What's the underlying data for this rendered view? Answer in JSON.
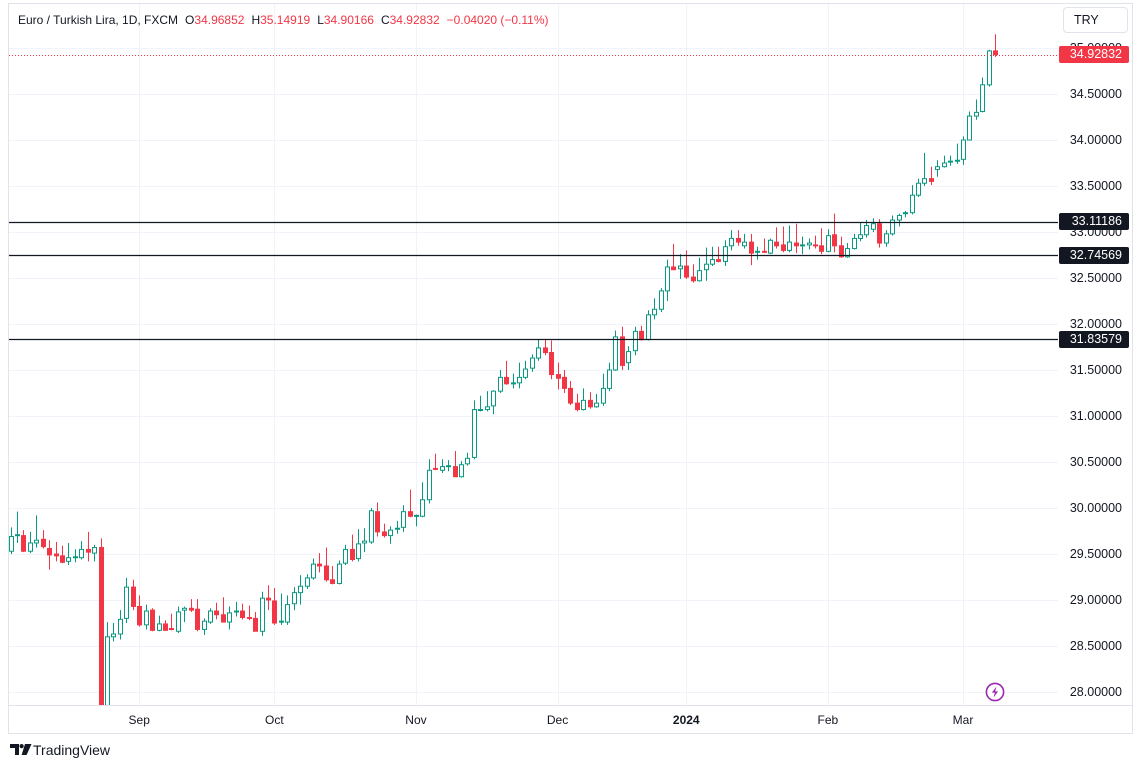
{
  "header": {
    "symbol": "Euro / Turkish Lira, 1D, FXCM",
    "open_label": "O",
    "open": "34.96852",
    "high_label": "H",
    "high": "35.14919",
    "low_label": "L",
    "low": "34.90166",
    "close_label": "C",
    "close": "34.92832",
    "change": "−0.04020 (−0.11%)"
  },
  "currency_button": {
    "label": "TRY"
  },
  "last_price": {
    "label": "34.92832",
    "value": 34.92832
  },
  "levels": [
    {
      "label": "33.11186",
      "value": 33.11186
    },
    {
      "label": "32.74569",
      "value": 32.74569
    },
    {
      "label": "31.83579",
      "value": 31.83579
    }
  ],
  "footer": {
    "brand": "TradingView"
  },
  "icons": {
    "replay_lightning": "lightning-icon",
    "logo": "tradingview-logo-icon"
  },
  "colors": {
    "up": "#089981",
    "down": "#F23645",
    "level": "#131722",
    "grid": "#f0f3fa",
    "lightning": "#9c27b0"
  },
  "chart_data": {
    "type": "candlestick",
    "title": "Euro / Turkish Lira, 1D, FXCM",
    "xlabel": "",
    "ylabel": "TRY",
    "ylim": [
      27.85,
      35.48
    ],
    "grid": true,
    "yticks": [
      {
        "value": 35.0,
        "label": "35.00000"
      },
      {
        "value": 34.5,
        "label": "34.50000"
      },
      {
        "value": 34.0,
        "label": "34.00000"
      },
      {
        "value": 33.5,
        "label": "33.50000"
      },
      {
        "value": 33.0,
        "label": "33.00000"
      },
      {
        "value": 32.5,
        "label": "32.50000"
      },
      {
        "value": 32.0,
        "label": "32.00000"
      },
      {
        "value": 31.5,
        "label": "31.50000"
      },
      {
        "value": 31.0,
        "label": "31.00000"
      },
      {
        "value": 30.5,
        "label": "30.50000"
      },
      {
        "value": 30.0,
        "label": "30.00000"
      },
      {
        "value": 29.5,
        "label": "29.50000"
      },
      {
        "value": 29.0,
        "label": "29.00000"
      },
      {
        "value": 28.5,
        "label": "28.50000"
      },
      {
        "value": 28.0,
        "label": "28.00000"
      }
    ],
    "xticks": [
      {
        "label": "Sep",
        "index": 20
      },
      {
        "label": "Oct",
        "index": 41
      },
      {
        "label": "Nov",
        "index": 63
      },
      {
        "label": "Dec",
        "index": 85
      },
      {
        "label": "2024",
        "index": 105,
        "bold": true
      },
      {
        "label": "Feb",
        "index": 127
      },
      {
        "label": "Mar",
        "index": 148
      }
    ],
    "horizontal_levels": [
      33.11186,
      32.74569,
      31.83579
    ],
    "last_price": 34.92832,
    "ohlc_fields": [
      "open",
      "high",
      "low",
      "close"
    ],
    "ohlc": [
      [
        29.53,
        29.79,
        29.5,
        29.69
      ],
      [
        29.7,
        29.96,
        29.62,
        29.71
      ],
      [
        29.7,
        29.76,
        29.52,
        29.53
      ],
      [
        29.53,
        29.74,
        29.51,
        29.62
      ],
      [
        29.62,
        29.92,
        29.57,
        29.65
      ],
      [
        29.66,
        29.76,
        29.56,
        29.58
      ],
      [
        29.56,
        29.65,
        29.33,
        29.49
      ],
      [
        29.5,
        29.63,
        29.42,
        29.48
      ],
      [
        29.48,
        29.59,
        29.4,
        29.41
      ],
      [
        29.42,
        29.62,
        29.38,
        29.46
      ],
      [
        29.46,
        29.55,
        29.41,
        29.47
      ],
      [
        29.46,
        29.64,
        29.44,
        29.55
      ],
      [
        29.55,
        29.74,
        29.42,
        29.52
      ],
      [
        29.51,
        29.6,
        29.42,
        29.57
      ],
      [
        29.57,
        29.67,
        27.3,
        27.6
      ],
      [
        27.6,
        28.76,
        27.4,
        28.6
      ],
      [
        28.6,
        28.75,
        28.55,
        28.63
      ],
      [
        28.63,
        28.89,
        28.57,
        28.79
      ],
      [
        28.8,
        29.24,
        28.75,
        29.14
      ],
      [
        29.14,
        29.22,
        28.89,
        28.93
      ],
      [
        28.93,
        29.05,
        28.71,
        28.73
      ],
      [
        28.73,
        28.95,
        28.68,
        28.88
      ],
      [
        28.89,
        28.91,
        28.66,
        28.67
      ],
      [
        28.67,
        28.83,
        28.66,
        28.74
      ],
      [
        28.74,
        28.78,
        28.67,
        28.67
      ],
      [
        28.69,
        28.85,
        28.67,
        28.68
      ],
      [
        28.66,
        28.93,
        28.64,
        28.87
      ],
      [
        28.89,
        28.93,
        28.76,
        28.91
      ],
      [
        28.91,
        29.01,
        28.87,
        28.89
      ],
      [
        28.9,
        29.01,
        28.66,
        28.68
      ],
      [
        28.68,
        28.8,
        28.62,
        28.77
      ],
      [
        28.76,
        28.91,
        28.74,
        28.88
      ],
      [
        28.88,
        28.97,
        28.79,
        28.84
      ],
      [
        28.84,
        29.03,
        28.76,
        28.76
      ],
      [
        28.76,
        28.93,
        28.68,
        28.86
      ],
      [
        28.87,
        28.98,
        28.82,
        28.88
      ],
      [
        28.88,
        28.96,
        28.79,
        28.81
      ],
      [
        28.81,
        28.94,
        28.78,
        28.8
      ],
      [
        28.8,
        28.87,
        28.66,
        28.66
      ],
      [
        28.66,
        29.09,
        28.61,
        29.02
      ],
      [
        29.02,
        29.16,
        28.89,
        29.0
      ],
      [
        28.99,
        29.13,
        28.73,
        28.75
      ],
      [
        28.76,
        29.07,
        28.73,
        28.77
      ],
      [
        28.76,
        29.05,
        28.73,
        28.95
      ],
      [
        28.96,
        29.14,
        28.89,
        29.08
      ],
      [
        29.08,
        29.27,
        28.95,
        29.15
      ],
      [
        29.15,
        29.28,
        29.12,
        29.24
      ],
      [
        29.24,
        29.45,
        29.22,
        29.39
      ],
      [
        29.39,
        29.51,
        29.3,
        29.37
      ],
      [
        29.37,
        29.57,
        29.2,
        29.22
      ],
      [
        29.22,
        29.37,
        29.17,
        29.18
      ],
      [
        29.18,
        29.43,
        29.17,
        29.39
      ],
      [
        29.4,
        29.6,
        29.38,
        29.55
      ],
      [
        29.55,
        29.71,
        29.42,
        29.44
      ],
      [
        29.45,
        29.77,
        29.42,
        29.61
      ],
      [
        29.62,
        29.78,
        29.52,
        29.64
      ],
      [
        29.63,
        30.0,
        29.61,
        29.97
      ],
      [
        29.96,
        30.06,
        29.69,
        29.74
      ],
      [
        29.74,
        29.83,
        29.68,
        29.7
      ],
      [
        29.7,
        29.8,
        29.61,
        29.76
      ],
      [
        29.77,
        29.86,
        29.72,
        29.78
      ],
      [
        29.79,
        30.03,
        29.74,
        29.96
      ],
      [
        29.96,
        30.2,
        29.9,
        29.91
      ],
      [
        29.91,
        29.93,
        29.8,
        29.92
      ],
      [
        29.91,
        30.28,
        29.9,
        30.09
      ],
      [
        30.09,
        30.53,
        30.05,
        30.41
      ],
      [
        30.43,
        30.59,
        30.41,
        30.42
      ],
      [
        30.41,
        30.53,
        30.38,
        30.45
      ],
      [
        30.45,
        30.52,
        30.4,
        30.46
      ],
      [
        30.45,
        30.62,
        30.34,
        30.34
      ],
      [
        30.34,
        30.51,
        30.33,
        30.47
      ],
      [
        30.48,
        30.6,
        30.46,
        30.54
      ],
      [
        30.55,
        31.17,
        30.53,
        31.07
      ],
      [
        31.06,
        31.22,
        31.05,
        31.07
      ],
      [
        31.07,
        31.27,
        31.05,
        31.1
      ],
      [
        31.11,
        31.28,
        31.02,
        31.27
      ],
      [
        31.27,
        31.5,
        31.25,
        31.42
      ],
      [
        31.42,
        31.6,
        31.34,
        31.35
      ],
      [
        31.35,
        31.46,
        31.3,
        31.36
      ],
      [
        31.36,
        31.58,
        31.3,
        31.42
      ],
      [
        31.42,
        31.6,
        31.4,
        31.51
      ],
      [
        31.52,
        31.67,
        31.48,
        31.63
      ],
      [
        31.63,
        31.83,
        31.6,
        31.74
      ],
      [
        31.74,
        31.84,
        31.66,
        31.69
      ],
      [
        31.69,
        31.82,
        31.4,
        31.45
      ],
      [
        31.45,
        31.58,
        31.29,
        31.41
      ],
      [
        31.42,
        31.5,
        31.25,
        31.3
      ],
      [
        31.3,
        31.38,
        31.12,
        31.14
      ],
      [
        31.14,
        31.24,
        31.05,
        31.07
      ],
      [
        31.07,
        31.3,
        31.06,
        31.17
      ],
      [
        31.17,
        31.26,
        31.08,
        31.1
      ],
      [
        31.1,
        31.24,
        31.09,
        31.14
      ],
      [
        31.14,
        31.46,
        31.11,
        31.3
      ],
      [
        31.3,
        31.58,
        31.27,
        31.5
      ],
      [
        31.5,
        31.93,
        31.49,
        31.86
      ],
      [
        31.86,
        31.97,
        31.5,
        31.55
      ],
      [
        31.58,
        31.76,
        31.5,
        31.7
      ],
      [
        31.71,
        31.97,
        31.66,
        31.92
      ],
      [
        31.92,
        31.98,
        31.82,
        31.83
      ],
      [
        31.83,
        32.15,
        31.82,
        32.1
      ],
      [
        32.1,
        32.28,
        32.05,
        32.16
      ],
      [
        32.16,
        32.39,
        32.13,
        32.36
      ],
      [
        32.36,
        32.7,
        32.25,
        32.62
      ],
      [
        32.62,
        32.87,
        32.59,
        32.59
      ],
      [
        32.6,
        32.76,
        32.49,
        32.63
      ],
      [
        32.63,
        32.8,
        32.49,
        32.51
      ],
      [
        32.51,
        32.65,
        32.45,
        32.47
      ],
      [
        32.47,
        32.72,
        32.46,
        32.58
      ],
      [
        32.59,
        32.83,
        32.47,
        32.65
      ],
      [
        32.65,
        32.84,
        32.63,
        32.7
      ],
      [
        32.7,
        32.84,
        32.67,
        32.68
      ],
      [
        32.68,
        32.91,
        32.63,
        32.84
      ],
      [
        32.85,
        33.02,
        32.8,
        32.93
      ],
      [
        32.93,
        33.02,
        32.85,
        32.89
      ],
      [
        32.85,
        32.98,
        32.82,
        32.89
      ],
      [
        32.89,
        32.98,
        32.64,
        32.77
      ],
      [
        32.78,
        32.84,
        32.7,
        32.79
      ],
      [
        32.79,
        32.93,
        32.77,
        32.78
      ],
      [
        32.77,
        32.93,
        32.76,
        32.91
      ],
      [
        32.89,
        33.05,
        32.82,
        32.85
      ],
      [
        32.86,
        33.06,
        32.78,
        32.8
      ],
      [
        32.8,
        33.07,
        32.78,
        32.89
      ],
      [
        32.88,
        33.09,
        32.77,
        32.85
      ],
      [
        32.85,
        32.95,
        32.76,
        32.86
      ],
      [
        32.86,
        32.93,
        32.81,
        32.88
      ],
      [
        32.86,
        32.96,
        32.82,
        32.85
      ],
      [
        32.85,
        33.04,
        32.76,
        32.79
      ],
      [
        32.79,
        33.03,
        32.78,
        32.96
      ],
      [
        32.97,
        33.2,
        32.78,
        32.85
      ],
      [
        32.85,
        32.95,
        32.72,
        32.73
      ],
      [
        32.73,
        32.88,
        32.72,
        32.82
      ],
      [
        32.82,
        32.98,
        32.81,
        32.93
      ],
      [
        32.93,
        33.1,
        32.9,
        32.97
      ],
      [
        32.97,
        33.13,
        32.94,
        33.07
      ],
      [
        33.03,
        33.15,
        33.0,
        33.09
      ],
      [
        33.09,
        33.14,
        32.83,
        32.88
      ],
      [
        32.88,
        33.02,
        32.84,
        32.98
      ],
      [
        32.98,
        33.18,
        32.96,
        33.13
      ],
      [
        33.13,
        33.2,
        33.06,
        33.18
      ],
      [
        33.2,
        33.23,
        33.16,
        33.21
      ],
      [
        33.21,
        33.51,
        33.19,
        33.4
      ],
      [
        33.4,
        33.58,
        33.38,
        33.53
      ],
      [
        33.53,
        33.86,
        33.5,
        33.58
      ],
      [
        33.58,
        33.71,
        33.51,
        33.55
      ],
      [
        33.68,
        33.78,
        33.6,
        33.71
      ],
      [
        33.71,
        33.83,
        33.7,
        33.75
      ],
      [
        33.76,
        33.83,
        33.72,
        33.77
      ],
      [
        33.77,
        33.96,
        33.74,
        33.78
      ],
      [
        33.79,
        34.04,
        33.73,
        34.0
      ],
      [
        34.0,
        34.31,
        34.0,
        34.26
      ],
      [
        34.26,
        34.44,
        34.22,
        34.3
      ],
      [
        34.31,
        34.68,
        34.3,
        34.6
      ],
      [
        34.6,
        34.98,
        34.58,
        34.96852
      ],
      [
        34.96852,
        35.14919,
        34.90166,
        34.92832
      ]
    ]
  }
}
